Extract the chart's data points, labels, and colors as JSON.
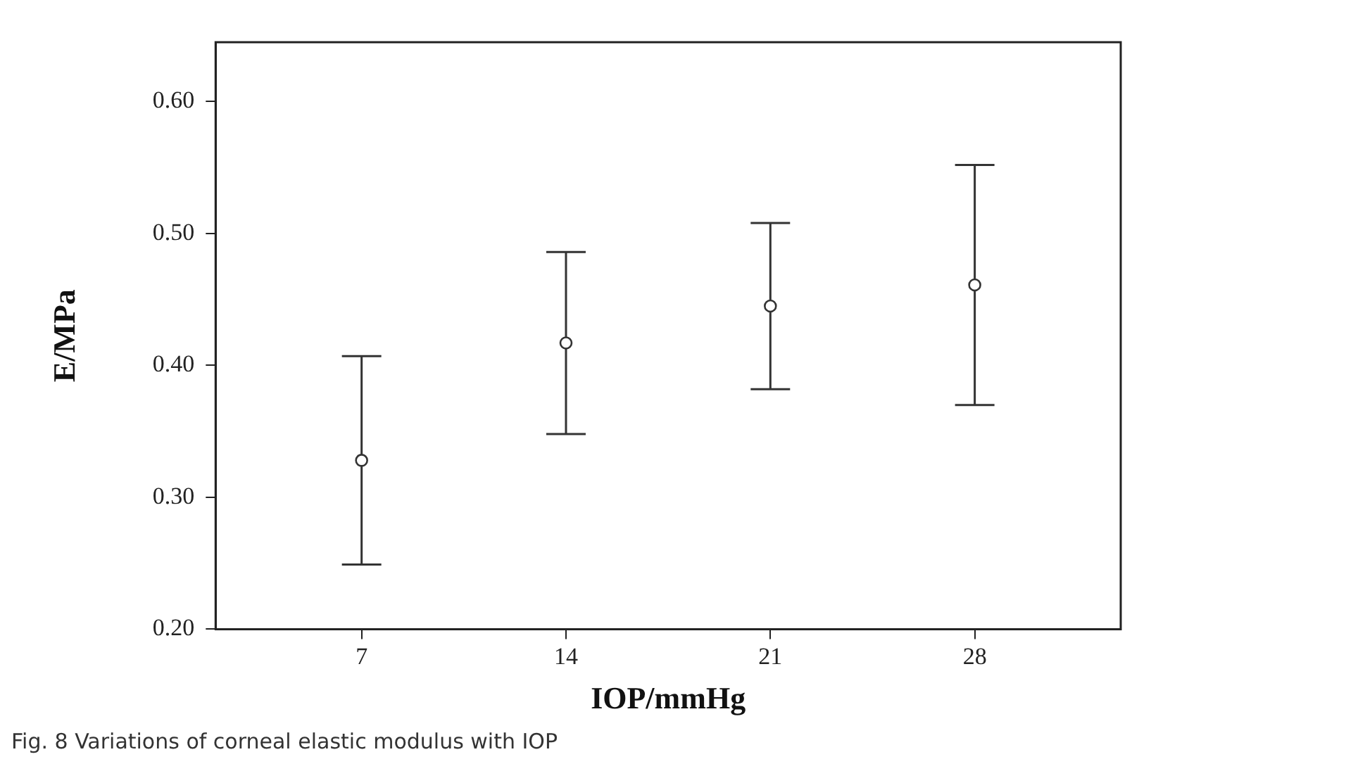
{
  "chart_data": {
    "type": "scatter",
    "xlabel": "IOP/mmHg",
    "ylabel": "E/MPa",
    "x": [
      7,
      14,
      21,
      28
    ],
    "series": [
      {
        "color": "#333333",
        "values": [
          0.328,
          0.417,
          0.445,
          0.461
        ],
        "errors": [
          [
            0.249,
            0.407
          ],
          [
            0.348,
            0.486
          ],
          [
            0.382,
            0.508
          ],
          [
            0.37,
            0.552
          ]
        ]
      }
    ],
    "marker": "circle",
    "grid": false,
    "legend": false,
    "xlim": [
      2,
      33
    ],
    "xticks": [
      7,
      14,
      21,
      28
    ],
    "ylim": [
      0.2,
      0.645
    ],
    "yticks": [
      {
        "value": 0.2,
        "label": "0.20"
      },
      {
        "value": 0.3,
        "label": "0.30"
      },
      {
        "value": 0.4,
        "label": "0.40"
      },
      {
        "value": 0.5,
        "label": "0.50"
      },
      {
        "value": 0.6,
        "label": "0.60"
      }
    ],
    "annotations": [
      "Fig. 8 Variations of corneal elastic modulus with IOP"
    ]
  }
}
